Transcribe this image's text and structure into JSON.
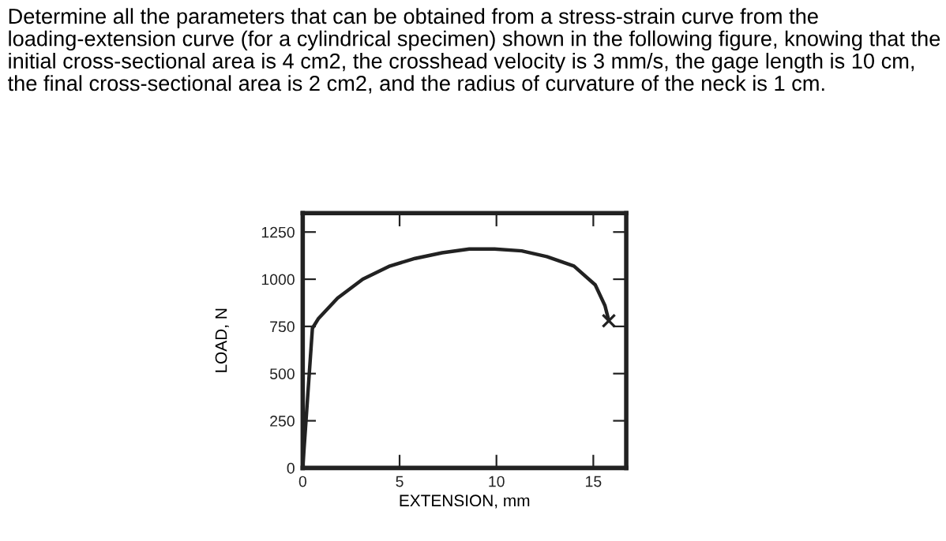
{
  "chart_data": {
    "type": "line",
    "title": "Determine all the parameters that can be obtained from a stress-strain curve from the loading-extension curve (for a cylindrical specimen) shown in the following figure, knowing that the initial cross-sectional area is 4 cm2, the crosshead velocity is 3 mm/s, the gage length is 10 cm, the final cross-sectional area is 2 cm2, and the radius of curvature of the neck is 1 cm.",
    "xlabel": "EXTENSION, mm",
    "ylabel": "LOAD, N",
    "xlim": [
      0,
      16.7
    ],
    "ylim": [
      0,
      1350
    ],
    "xticks": [
      0,
      5,
      10,
      15
    ],
    "yticks": [
      0,
      250,
      500,
      750,
      1000,
      1250
    ],
    "grid": false,
    "legend": false,
    "series": [
      {
        "color": "#222222",
        "marker": "none",
        "x": [
          0,
          0.5,
          0.8,
          1.8,
          3.1,
          4.5,
          5.8,
          7.2,
          8.6,
          9.9,
          11.3,
          12.6,
          14.0,
          15.1,
          15.6,
          15.8
        ],
        "values": [
          0,
          740,
          790,
          900,
          1000,
          1070,
          1110,
          1140,
          1160,
          1160,
          1150,
          1120,
          1070,
          970,
          860,
          780
        ]
      },
      {
        "type": "scatter",
        "color": "#222222",
        "marker": "cross",
        "x": [
          15.8
        ],
        "values": [
          780
        ]
      }
    ]
  }
}
